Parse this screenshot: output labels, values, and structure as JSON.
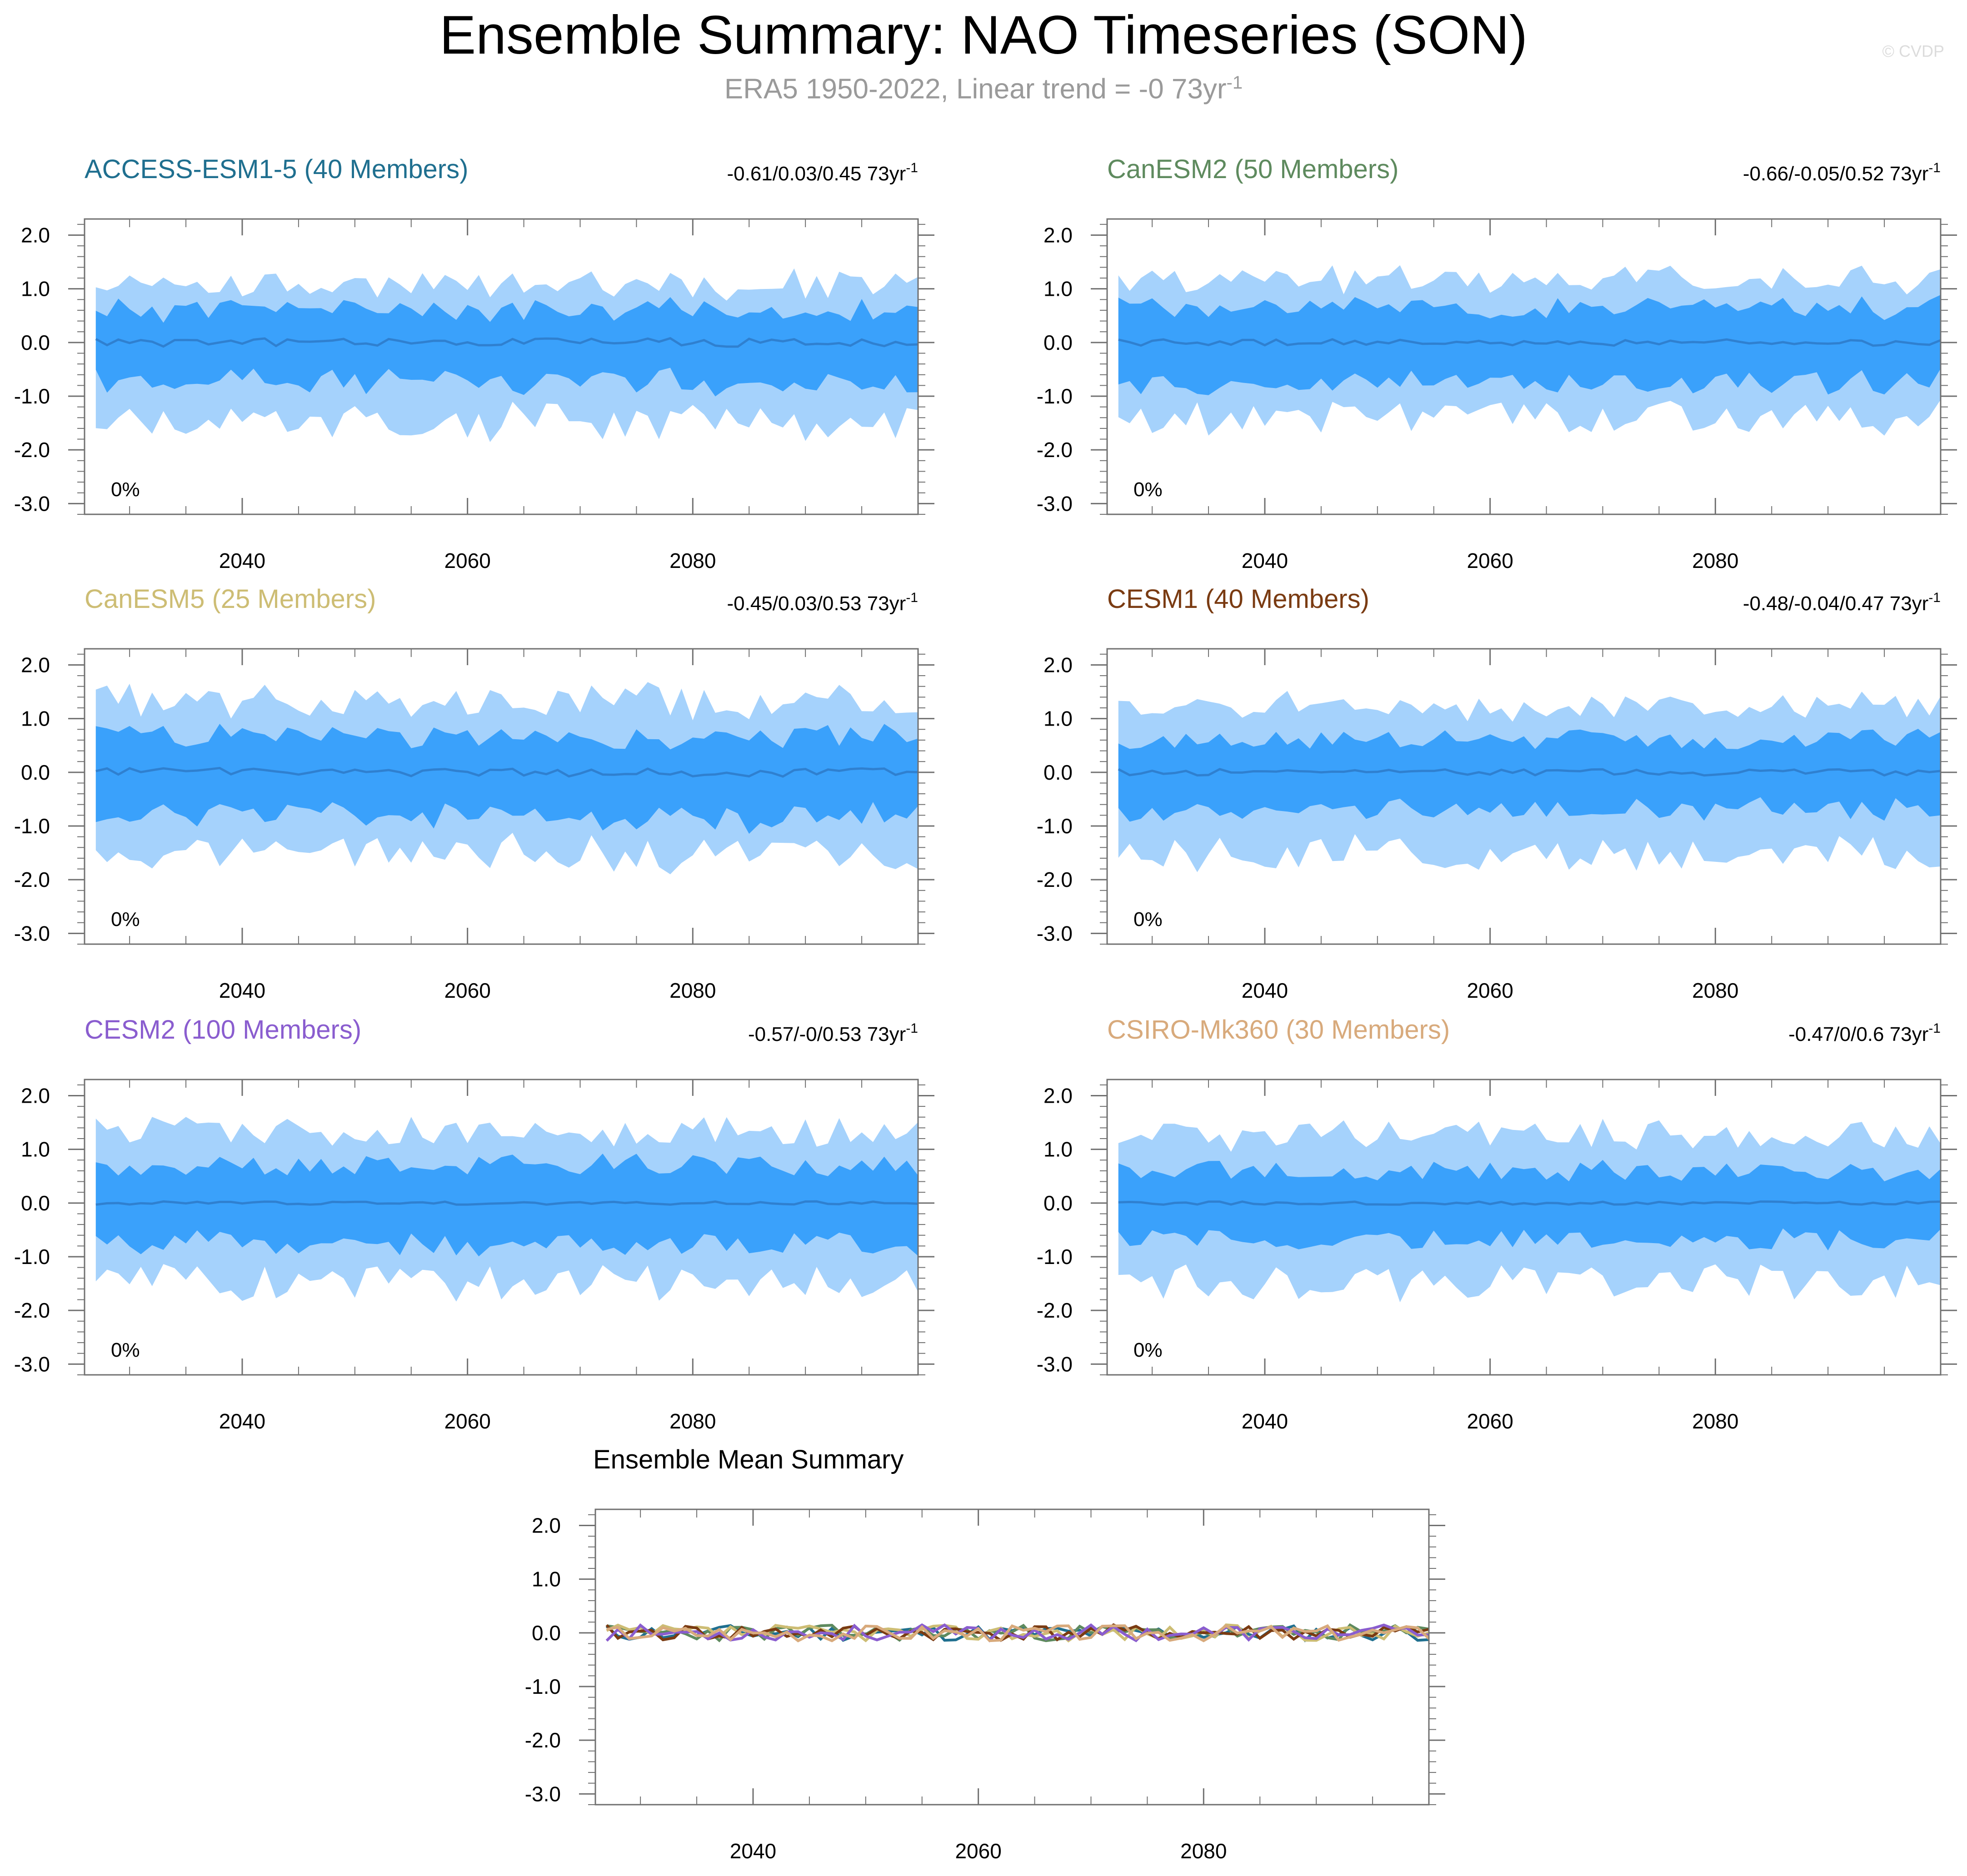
{
  "title": "Ensemble Summary: NAO Timeseries (SON)",
  "subtitle": {
    "text": "ERA5 1950-2022, Linear trend = -0 73yr",
    "sup": "-1"
  },
  "watermark": "© CVDP",
  "colors": {
    "outer_band": "#a5d2fc",
    "inner_band": "#3aa1fb",
    "mean_line": "#2f80d0",
    "axis": "#707070"
  },
  "chart_data": [
    {
      "type": "area",
      "title": "ACCESS-ESM1-5 (40 Members)",
      "title_color": "#1f6f8f",
      "trend": {
        "text": "-0.61/0.03/0.45 73yr",
        "sup": "-1"
      },
      "pct": "0%",
      "x_range": [
        2027,
        2100
      ],
      "xlim": [
        2026,
        2100
      ],
      "ylim": [
        -3.2,
        2.3
      ],
      "x_ticks": [
        "2040",
        "2060",
        "2080"
      ],
      "y_ticks": [
        "2.0",
        "1.0",
        "0.0",
        "-1.0",
        "-2.0",
        "-3.0"
      ],
      "seed": 11,
      "amp": {
        "outer_hi": 1.0,
        "outer_lo": 1.35,
        "inner_hi": 0.6,
        "inner_lo": 0.75,
        "mean": 0.08
      }
    },
    {
      "type": "area",
      "title": "CanESM2 (50 Members)",
      "title_color": "#5e8a5e",
      "trend": {
        "text": "-0.66/-0.05/0.52 73yr",
        "sup": "-1"
      },
      "pct": "0%",
      "x_range": [
        2027,
        2100
      ],
      "xlim": [
        2026,
        2100
      ],
      "ylim": [
        -3.2,
        2.3
      ],
      "x_ticks": [
        "2040",
        "2060",
        "2080"
      ],
      "y_ticks": [
        "2.0",
        "1.0",
        "0.0",
        "-1.0",
        "-2.0",
        "-3.0"
      ],
      "seed": 23,
      "amp": {
        "outer_hi": 1.05,
        "outer_lo": 1.3,
        "inner_hi": 0.65,
        "inner_lo": 0.75,
        "mean": 0.06
      }
    },
    {
      "type": "area",
      "title": "CanESM5 (25 Members)",
      "title_color": "#cdbd74",
      "trend": {
        "text": "-0.45/0.03/0.53 73yr",
        "sup": "-1"
      },
      "pct": "0%",
      "x_range": [
        2027,
        2100
      ],
      "xlim": [
        2026,
        2100
      ],
      "ylim": [
        -3.2,
        2.3
      ],
      "x_ticks": [
        "2040",
        "2060",
        "2080"
      ],
      "y_ticks": [
        "2.0",
        "1.0",
        "0.0",
        "-1.0",
        "-2.0",
        "-3.0"
      ],
      "seed": 37,
      "amp": {
        "outer_hi": 1.2,
        "outer_lo": 1.4,
        "inner_hi": 0.65,
        "inner_lo": 0.85,
        "mean": 0.08
      }
    },
    {
      "type": "area",
      "title": "CESM1 (40 Members)",
      "title_color": "#7a3b12",
      "trend": {
        "text": "-0.48/-0.04/0.47 73yr",
        "sup": "-1"
      },
      "pct": "0%",
      "x_range": [
        2027,
        2100
      ],
      "xlim": [
        2026,
        2100
      ],
      "ylim": [
        -3.2,
        2.3
      ],
      "x_ticks": [
        "2040",
        "2060",
        "2080"
      ],
      "y_ticks": [
        "2.0",
        "1.0",
        "0.0",
        "-1.0",
        "-2.0",
        "-3.0"
      ],
      "seed": 41,
      "amp": {
        "outer_hi": 1.1,
        "outer_lo": 1.4,
        "inner_hi": 0.6,
        "inner_lo": 0.7,
        "mean": 0.06
      }
    },
    {
      "type": "area",
      "title": "CESM2 (100 Members)",
      "title_color": "#8a5dcf",
      "trend": {
        "text": "-0.57/-0/0.53 73yr",
        "sup": "-1"
      },
      "pct": "0%",
      "x_range": [
        2027,
        2100
      ],
      "xlim": [
        2026,
        2100
      ],
      "ylim": [
        -3.2,
        2.3
      ],
      "x_ticks": [
        "2040",
        "2060",
        "2080"
      ],
      "y_ticks": [
        "2.0",
        "1.0",
        "0.0",
        "-1.0",
        "-2.0",
        "-3.0"
      ],
      "seed": 53,
      "amp": {
        "outer_hi": 1.2,
        "outer_lo": 1.35,
        "inner_hi": 0.7,
        "inner_lo": 0.75,
        "mean": 0.03
      }
    },
    {
      "type": "area",
      "title": "CSIRO-Mk360 (30 Members)",
      "title_color": "#d8aa7c",
      "trend": {
        "text": "-0.47/0/0.6 73yr",
        "sup": "-1"
      },
      "pct": "0%",
      "x_range": [
        2027,
        2100
      ],
      "xlim": [
        2026,
        2100
      ],
      "ylim": [
        -3.2,
        2.3
      ],
      "x_ticks": [
        "2040",
        "2060",
        "2080"
      ],
      "y_ticks": [
        "2.0",
        "1.0",
        "0.0",
        "-1.0",
        "-2.0",
        "-3.0"
      ],
      "seed": 67,
      "amp": {
        "outer_hi": 1.15,
        "outer_lo": 1.35,
        "inner_hi": 0.6,
        "inner_lo": 0.7,
        "mean": 0.03
      }
    },
    {
      "type": "line",
      "title": "Ensemble Mean Summary",
      "title_color": "#000000",
      "x_range": [
        2027,
        2100
      ],
      "xlim": [
        2026,
        2100
      ],
      "ylim": [
        -3.2,
        2.3
      ],
      "x_ticks": [
        "2040",
        "2060",
        "2080"
      ],
      "y_ticks": [
        "2.0",
        "1.0",
        "0.0",
        "-1.0",
        "-2.0",
        "-3.0"
      ],
      "series": [
        {
          "color": "#1f6f8f",
          "seed": 11
        },
        {
          "color": "#5e8a5e",
          "seed": 23
        },
        {
          "color": "#cdbd74",
          "seed": 37
        },
        {
          "color": "#7a3b12",
          "seed": 41
        },
        {
          "color": "#8a5dcf",
          "seed": 53
        },
        {
          "color": "#d8aa7c",
          "seed": 67
        }
      ]
    }
  ]
}
